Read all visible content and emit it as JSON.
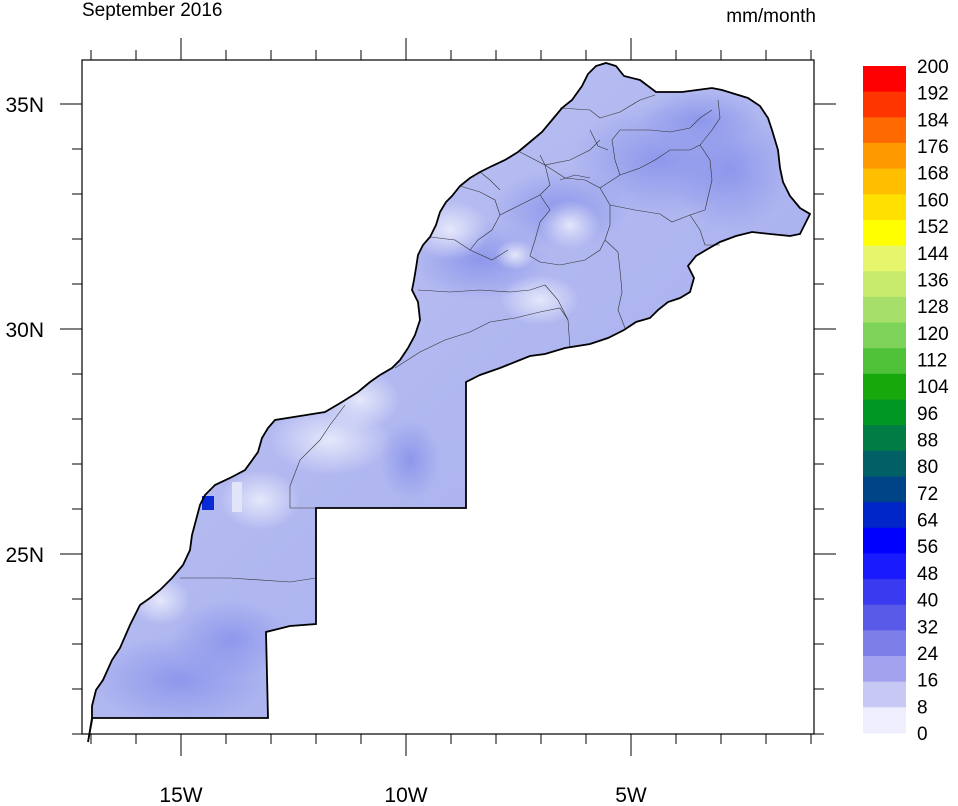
{
  "title": "September 2016",
  "units": "mm/month",
  "x_ticks": [
    {
      "label": "15W",
      "lon": -15
    },
    {
      "label": "10W",
      "lon": -10
    },
    {
      "label": "5W",
      "lon": -5
    }
  ],
  "y_ticks": [
    {
      "label": "35N",
      "lat": 35
    },
    {
      "label": "30N",
      "lat": 30
    },
    {
      "label": "25N",
      "lat": 25
    }
  ],
  "colorbar": {
    "labels": [
      "200",
      "192",
      "184",
      "176",
      "168",
      "160",
      "152",
      "144",
      "136",
      "128",
      "120",
      "112",
      "104",
      "96",
      "88",
      "80",
      "72",
      "64",
      "56",
      "48",
      "40",
      "32",
      "24",
      "16",
      "8",
      "0"
    ],
    "colors": [
      "#ff0000",
      "#ff3500",
      "#ff6a00",
      "#ff9900",
      "#ffbf00",
      "#ffe000",
      "#ffff00",
      "#e6f56c",
      "#c8eb6e",
      "#a6e06a",
      "#7ed45a",
      "#4fc23a",
      "#17a90c",
      "#009822",
      "#007d44",
      "#006066",
      "#004488",
      "#0026c8",
      "#0000ff",
      "#1a1aff",
      "#3a3af0",
      "#5a5ae8",
      "#7e7ee8",
      "#a2a2ee",
      "#c8c8f5",
      "#eeeefc"
    ]
  },
  "colors": {
    "land_fill": "#b3baf0",
    "land_dark": "#8e98ec",
    "land_light": "#d9dcf7",
    "hotspot": "#0a2ad8",
    "border": "#000000"
  }
}
